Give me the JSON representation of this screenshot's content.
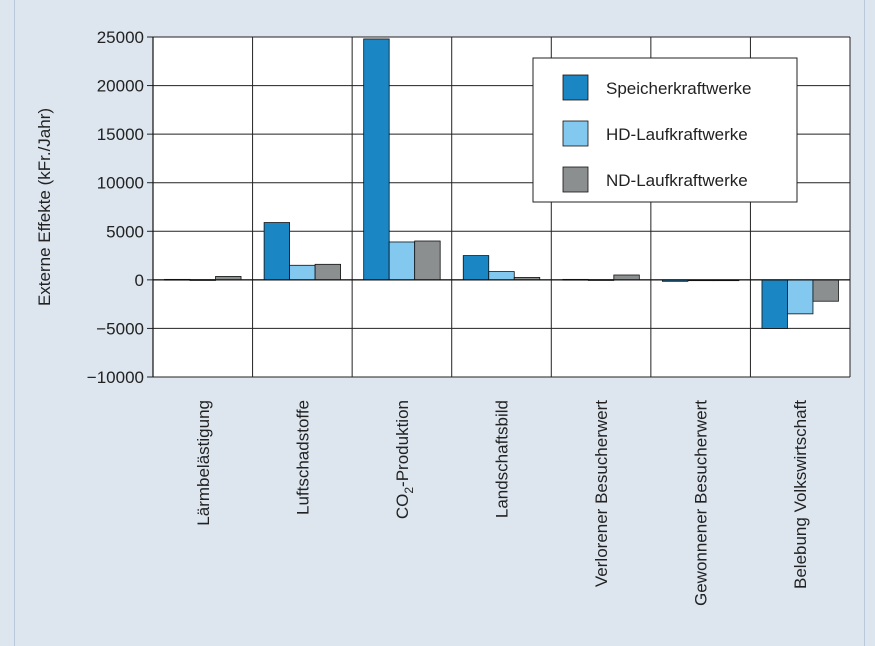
{
  "colors": {
    "panel": "#dde6ef",
    "plot_bg": "#ffffff",
    "grid": "#222222"
  },
  "chart_data": {
    "type": "bar",
    "title": "",
    "xlabel": "",
    "ylabel": "Externe Effekte (kFr./Jahr)",
    "ylim": [
      -10000,
      25000
    ],
    "yticks": [
      -10000,
      -5000,
      0,
      5000,
      10000,
      15000,
      20000,
      25000
    ],
    "ytick_labels": [
      "−10000",
      "−5000",
      "0",
      "5000",
      "10000",
      "15000",
      "20000",
      "25000"
    ],
    "grid": true,
    "legend_position": "top-right",
    "categories": [
      "Lärmbelästigung",
      "Luftschadstoffe",
      "CO2-Produktion",
      "Landschaftsbild",
      "Verlorener Besucherwert",
      "Gewonnener Besucherwert",
      "Belebung Volkswirtschaft"
    ],
    "series": [
      {
        "name": "Speicherkraftwerke",
        "color": "#1a86c4",
        "values": [
          50,
          5900,
          24800,
          2500,
          50,
          -150,
          -5000
        ]
      },
      {
        "name": "HD-Laufkraftwerke",
        "color": "#82c8ef",
        "values": [
          20,
          1500,
          3900,
          850,
          20,
          -50,
          -3500
        ]
      },
      {
        "name": "ND-Laufkraftwerke",
        "color": "#8c8f90",
        "values": [
          350,
          1600,
          4000,
          250,
          500,
          -50,
          -2200
        ]
      }
    ]
  }
}
